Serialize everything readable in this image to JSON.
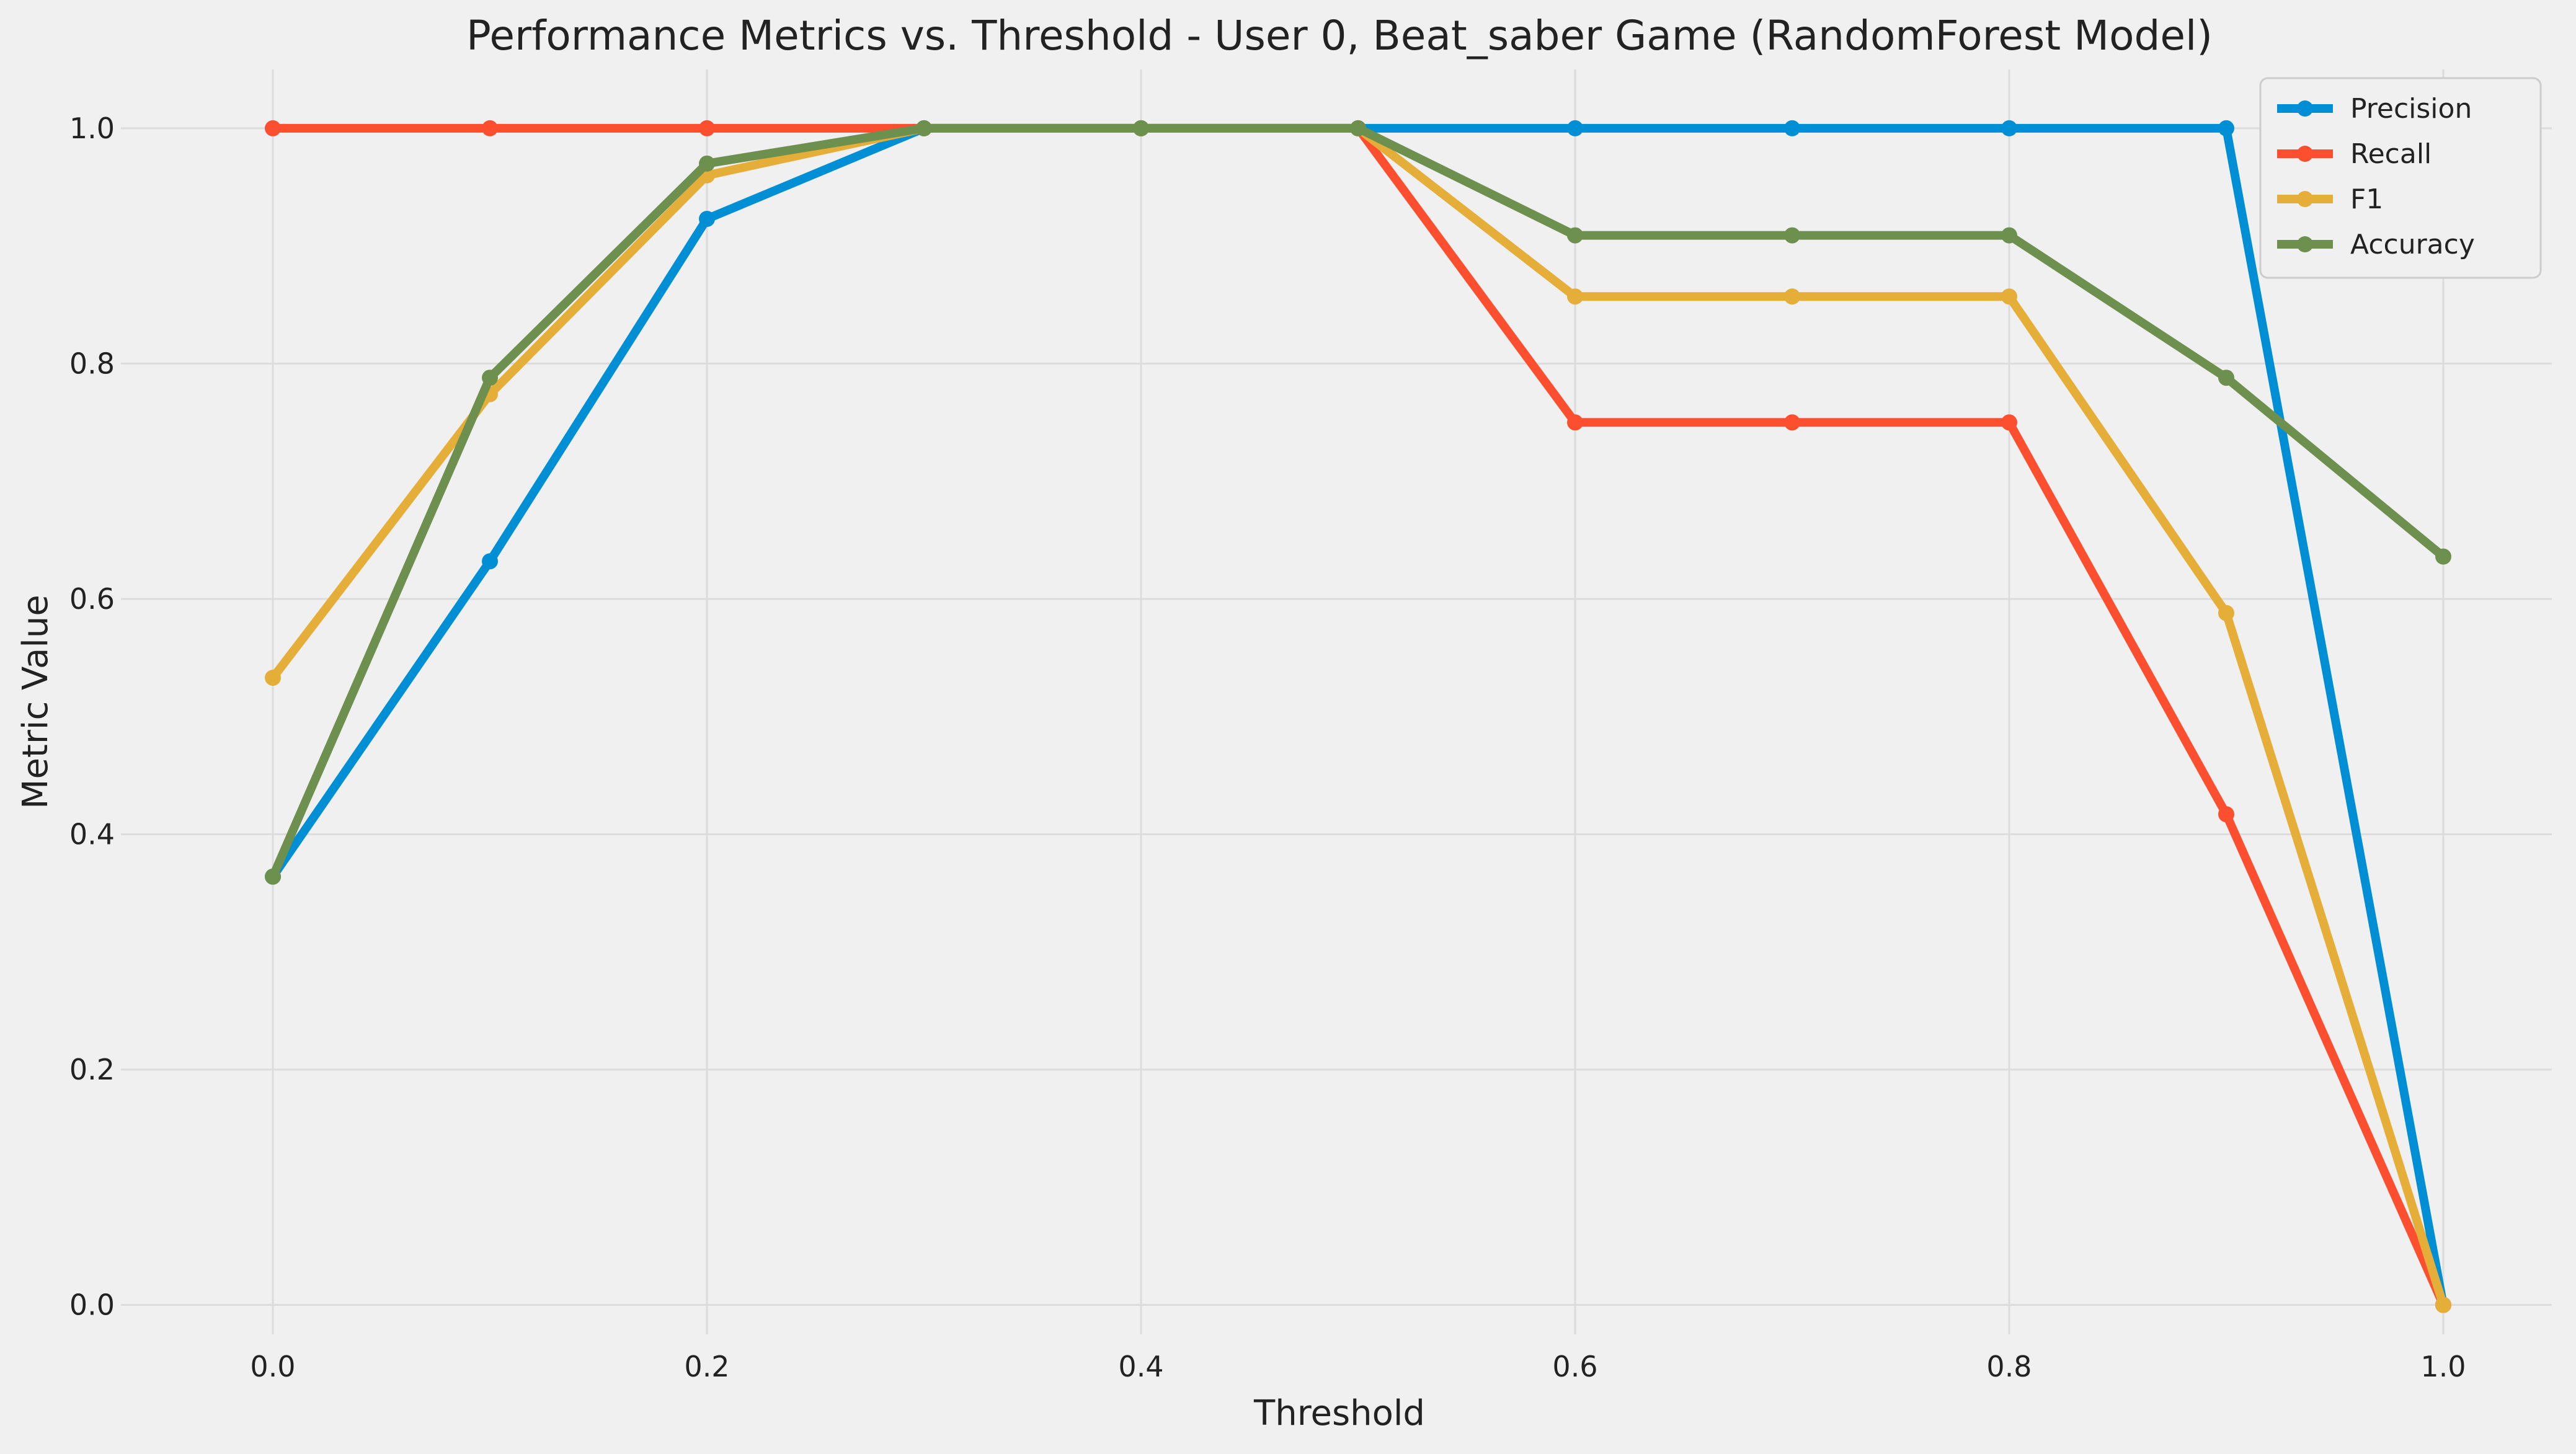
{
  "chart_data": {
    "type": "line",
    "title": "Performance Metrics vs. Threshold - User 0, Beat_saber Game (RandomForest Model)",
    "xlabel": "Threshold",
    "ylabel": "Metric Value",
    "xlim": [
      -0.07,
      1.05
    ],
    "ylim": [
      -0.025,
      1.05
    ],
    "x": [
      0.0,
      0.1,
      0.2,
      0.3,
      0.4,
      0.5,
      0.6,
      0.7,
      0.8,
      0.9,
      1.0
    ],
    "xticks": [
      0.0,
      0.2,
      0.4,
      0.6,
      0.8,
      1.0
    ],
    "xtick_labels": [
      "0.0",
      "0.2",
      "0.4",
      "0.6",
      "0.8",
      "1.0"
    ],
    "yticks": [
      0.0,
      0.2,
      0.4,
      0.6,
      0.8,
      1.0
    ],
    "ytick_labels": [
      "0.0",
      "0.2",
      "0.4",
      "0.6",
      "0.8",
      "1.0"
    ],
    "grid": true,
    "legend_position": "top-right",
    "series": [
      {
        "name": "Precision",
        "color": "#008fd5",
        "values": [
          0.364,
          0.632,
          0.923,
          1.0,
          1.0,
          1.0,
          1.0,
          1.0,
          1.0,
          1.0,
          0.0
        ]
      },
      {
        "name": "Recall",
        "color": "#fc4f30",
        "values": [
          1.0,
          1.0,
          1.0,
          1.0,
          1.0,
          1.0,
          0.75,
          0.75,
          0.75,
          0.417,
          0.0
        ]
      },
      {
        "name": "F1",
        "color": "#e5ae38",
        "values": [
          0.533,
          0.774,
          0.96,
          1.0,
          1.0,
          1.0,
          0.857,
          0.857,
          0.857,
          0.588,
          0.0
        ]
      },
      {
        "name": "Accuracy",
        "color": "#6d904f",
        "values": [
          0.364,
          0.788,
          0.97,
          1.0,
          1.0,
          1.0,
          0.909,
          0.909,
          0.909,
          0.788,
          0.636
        ]
      }
    ]
  }
}
